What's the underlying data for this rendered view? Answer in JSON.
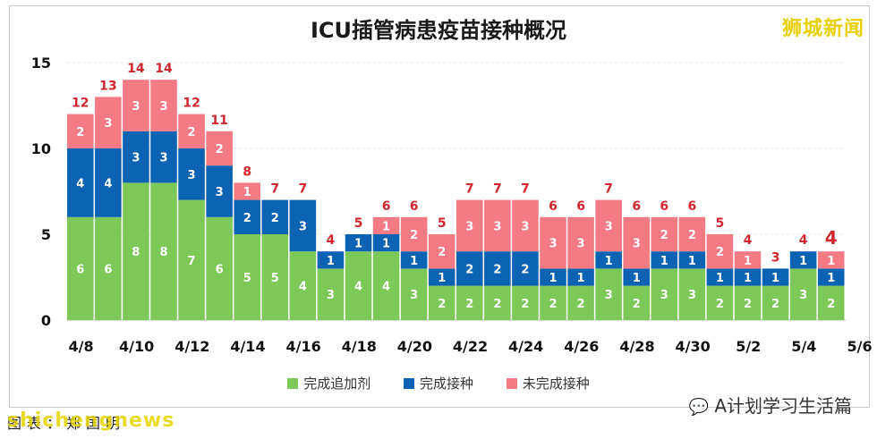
{
  "header": {
    "title": "ICU插管病患疫苗接种概况",
    "brand": "狮城新闻"
  },
  "footer": {
    "source": "图表：郑国明",
    "watermark": "shichengnews",
    "account": "A计划学习生活篇",
    "account_icon": "wechat-icon"
  },
  "colors": {
    "booster": "#7cc95a",
    "full": "#0c62b3",
    "unvaccinated": "#f47a84",
    "total_label": "#d0262e"
  },
  "chart_data": {
    "type": "bar",
    "stacked": true,
    "title": "ICU插管病患疫苗接种概况",
    "xlabel": "",
    "ylabel": "",
    "ylim": [
      0,
      15
    ],
    "yticks": [
      0,
      5,
      10,
      15
    ],
    "grid": true,
    "legend_position": "bottom",
    "x_tick_labels": [
      "4/8",
      "4/10",
      "4/12",
      "4/14",
      "4/16",
      "4/18",
      "4/20",
      "4/22",
      "4/24",
      "4/26",
      "4/28",
      "4/30",
      "5/2",
      "5/4",
      "5/6"
    ],
    "categories": [
      "4/8",
      "4/9",
      "4/10",
      "4/11",
      "4/12",
      "4/13",
      "4/14",
      "4/15",
      "4/16",
      "4/17",
      "4/18",
      "4/19",
      "4/20",
      "4/21",
      "4/22",
      "4/23",
      "4/24",
      "4/25",
      "4/26",
      "4/27",
      "4/28",
      "4/29",
      "4/30",
      "5/1",
      "5/2",
      "5/3",
      "5/4",
      "5/5"
    ],
    "series": [
      {
        "name": "完成追加剂",
        "values": [
          6,
          6,
          8,
          8,
          7,
          6,
          5,
          5,
          4,
          3,
          4,
          4,
          3,
          2,
          2,
          2,
          2,
          2,
          2,
          3,
          2,
          3,
          3,
          2,
          2,
          2,
          3,
          2
        ]
      },
      {
        "name": "完成接种",
        "values": [
          4,
          4,
          3,
          3,
          3,
          3,
          2,
          2,
          3,
          1,
          1,
          1,
          1,
          1,
          2,
          2,
          2,
          1,
          1,
          1,
          1,
          1,
          1,
          1,
          1,
          1,
          1,
          1
        ]
      },
      {
        "name": "未完成接种",
        "values": [
          2,
          3,
          3,
          3,
          2,
          2,
          1,
          0,
          0,
          0,
          0,
          1,
          2,
          2,
          3,
          3,
          3,
          3,
          3,
          3,
          3,
          2,
          2,
          2,
          1,
          0,
          0,
          1
        ]
      }
    ],
    "totals": [
      12,
      13,
      14,
      14,
      12,
      11,
      8,
      7,
      7,
      4,
      5,
      6,
      6,
      5,
      7,
      7,
      7,
      6,
      6,
      7,
      6,
      6,
      6,
      5,
      4,
      3,
      4,
      4
    ]
  }
}
